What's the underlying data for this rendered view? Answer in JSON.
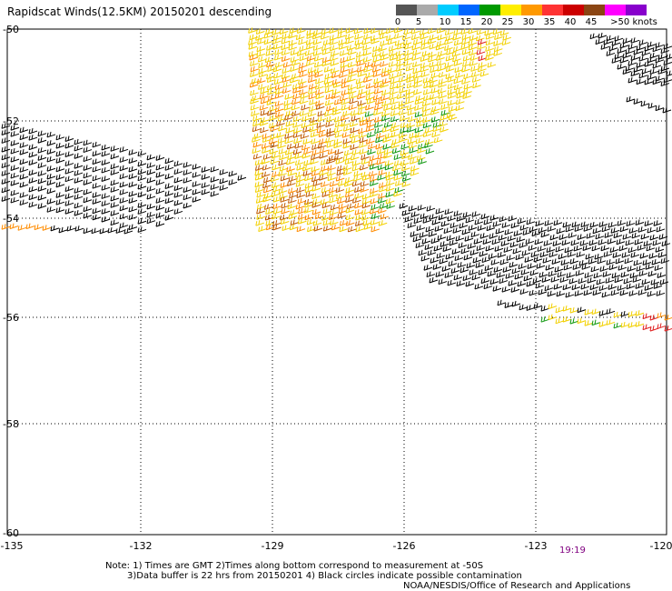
{
  "title": "Rapidscat Winds(12.5KM) 20150201 descending",
  "map": {
    "lon_ticks": [
      "-135",
      "-132",
      "-129",
      "-126",
      "-123",
      "-120"
    ],
    "lat_ticks": [
      "-50",
      "-52",
      "-54",
      "-56",
      "-58",
      "-60"
    ],
    "lon_range": [
      -135,
      -120
    ],
    "lat_range": [
      -50,
      -60
    ],
    "grid": "dotted"
  },
  "color_scale": {
    "unit_label": ">50 knots",
    "labels": [
      "0",
      "5",
      "10",
      "15",
      "20",
      "25",
      "30",
      "35",
      "40",
      "45"
    ],
    "colors": [
      "#555555",
      "#aaaaaa",
      "#00ccff",
      "#0066ff",
      "#009900",
      "#ffee00",
      "#ff9900",
      "#ff3333",
      "#cc0000",
      "#8b4513",
      "#ff00ff",
      "#8800cc"
    ]
  },
  "time_stamp": "19:19",
  "notes": {
    "line1": "Note: 1) Times are GMT 2)Times along bottom correspond to measurement at -50S",
    "line2": "3)Data buffer is 22 hrs from 20150201 4) Black circles indicate possible contamination",
    "line3": "NOAA/NESDIS/Office of Research and Applications"
  }
}
